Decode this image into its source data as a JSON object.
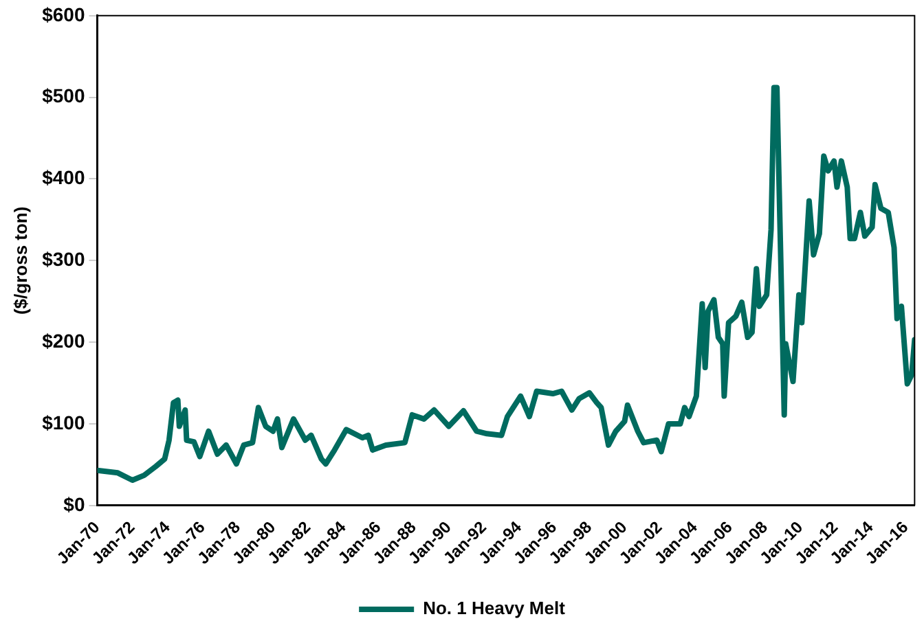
{
  "chart_data": {
    "type": "line",
    "ylabel": "($/gross ton)",
    "legend": "bottom",
    "grid": false,
    "marker": "none",
    "line_style": "solid",
    "xlim": [
      "1970-01",
      "2016-07"
    ],
    "xticks": [
      {
        "value": "1970-01",
        "label": "Jan-70"
      },
      {
        "value": "1972-01",
        "label": "Jan-72"
      },
      {
        "value": "1974-01",
        "label": "Jan-74"
      },
      {
        "value": "1976-01",
        "label": "Jan-76"
      },
      {
        "value": "1978-01",
        "label": "Jan-78"
      },
      {
        "value": "1980-01",
        "label": "Jan-80"
      },
      {
        "value": "1982-01",
        "label": "Jan-82"
      },
      {
        "value": "1984-01",
        "label": "Jan-84"
      },
      {
        "value": "1986-01",
        "label": "Jan-86"
      },
      {
        "value": "1988-01",
        "label": "Jan-88"
      },
      {
        "value": "1990-01",
        "label": "Jan-90"
      },
      {
        "value": "1992-01",
        "label": "Jan-92"
      },
      {
        "value": "1994-01",
        "label": "Jan-94"
      },
      {
        "value": "1996-01",
        "label": "Jan-96"
      },
      {
        "value": "1998-01",
        "label": "Jan-98"
      },
      {
        "value": "2000-01",
        "label": "Jan-00"
      },
      {
        "value": "2002-01",
        "label": "Jan-02"
      },
      {
        "value": "2004-01",
        "label": "Jan-04"
      },
      {
        "value": "2006-01",
        "label": "Jan-06"
      },
      {
        "value": "2008-01",
        "label": "Jan-08"
      },
      {
        "value": "2010-01",
        "label": "Jan-10"
      },
      {
        "value": "2012-01",
        "label": "Jan-12"
      },
      {
        "value": "2014-01",
        "label": "Jan-14"
      },
      {
        "value": "2016-01",
        "label": "Jan-16"
      }
    ],
    "ylim": [
      0,
      600
    ],
    "yticks": [
      {
        "value": 0,
        "label": "$0"
      },
      {
        "value": 100,
        "label": "$100"
      },
      {
        "value": 200,
        "label": "$200"
      },
      {
        "value": 300,
        "label": "$300"
      },
      {
        "value": 400,
        "label": "$400"
      },
      {
        "value": 500,
        "label": "$500"
      },
      {
        "value": 600,
        "label": "$600"
      }
    ],
    "series": [
      {
        "name": "No. 1 Heavy Melt",
        "color": "#006b5f",
        "x": [
          "1970-01",
          "1971-03",
          "1972-01",
          "1972-09",
          "1973-05",
          "1973-11",
          "1974-02",
          "1974-05",
          "1974-08",
          "1974-09",
          "1975-01",
          "1975-02",
          "1975-07",
          "1975-11",
          "1976-05",
          "1976-11",
          "1977-05",
          "1977-12",
          "1978-05",
          "1978-11",
          "1979-03",
          "1979-08",
          "1980-01",
          "1980-04",
          "1980-07",
          "1981-03",
          "1981-11",
          "1982-03",
          "1982-10",
          "1983-01",
          "1983-07",
          "1984-03",
          "1985-02",
          "1985-06",
          "1985-09",
          "1986-06",
          "1987-07",
          "1987-12",
          "1988-08",
          "1989-03",
          "1990-01",
          "1990-11",
          "1991-08",
          "1992-03",
          "1993-01",
          "1993-05",
          "1994-02",
          "1994-08",
          "1995-01",
          "1995-12",
          "1996-06",
          "1997-01",
          "1997-06",
          "1998-01",
          "1998-06",
          "1998-09",
          "1999-02",
          "1999-07",
          "2000-01",
          "2000-03",
          "2000-10",
          "2001-02",
          "2001-11",
          "2002-02",
          "2002-07",
          "2003-03",
          "2003-06",
          "2003-09",
          "2004-02",
          "2004-06",
          "2004-08",
          "2004-10",
          "2005-02",
          "2005-05",
          "2005-08",
          "2005-09",
          "2005-12",
          "2006-05",
          "2006-09",
          "2007-01",
          "2007-04",
          "2007-07",
          "2007-09",
          "2008-02",
          "2008-05",
          "2008-07",
          "2008-09",
          "2009-02",
          "2009-03",
          "2009-08",
          "2009-12",
          "2010-02",
          "2010-07",
          "2010-10",
          "2011-02",
          "2011-05",
          "2011-08",
          "2011-12",
          "2012-02",
          "2012-05",
          "2012-09",
          "2012-11",
          "2013-02",
          "2013-06",
          "2013-09",
          "2014-02",
          "2014-04",
          "2014-08",
          "2015-01",
          "2015-05",
          "2015-07",
          "2015-10",
          "2016-02",
          "2016-05",
          "2016-07"
        ],
        "values": [
          43,
          40,
          31,
          37,
          48,
          57,
          80,
          126,
          129,
          97,
          117,
          80,
          78,
          60,
          91,
          63,
          74,
          51,
          74,
          77,
          120,
          97,
          91,
          106,
          71,
          106,
          80,
          86,
          57,
          51,
          68,
          93,
          83,
          86,
          68,
          74,
          77,
          111,
          106,
          117,
          97,
          116,
          91,
          88,
          86,
          109,
          134,
          109,
          140,
          137,
          140,
          117,
          131,
          138,
          126,
          120,
          74,
          91,
          103,
          123,
          91,
          77,
          80,
          66,
          100,
          100,
          120,
          109,
          134,
          247,
          169,
          238,
          252,
          206,
          198,
          134,
          224,
          232,
          249,
          206,
          212,
          290,
          244,
          258,
          338,
          512,
          512,
          111,
          198,
          152,
          258,
          224,
          373,
          307,
          333,
          428,
          410,
          422,
          390,
          422,
          390,
          327,
          327,
          359,
          330,
          341,
          393,
          364,
          359,
          316,
          229,
          244,
          149,
          160,
          203
        ]
      }
    ]
  }
}
